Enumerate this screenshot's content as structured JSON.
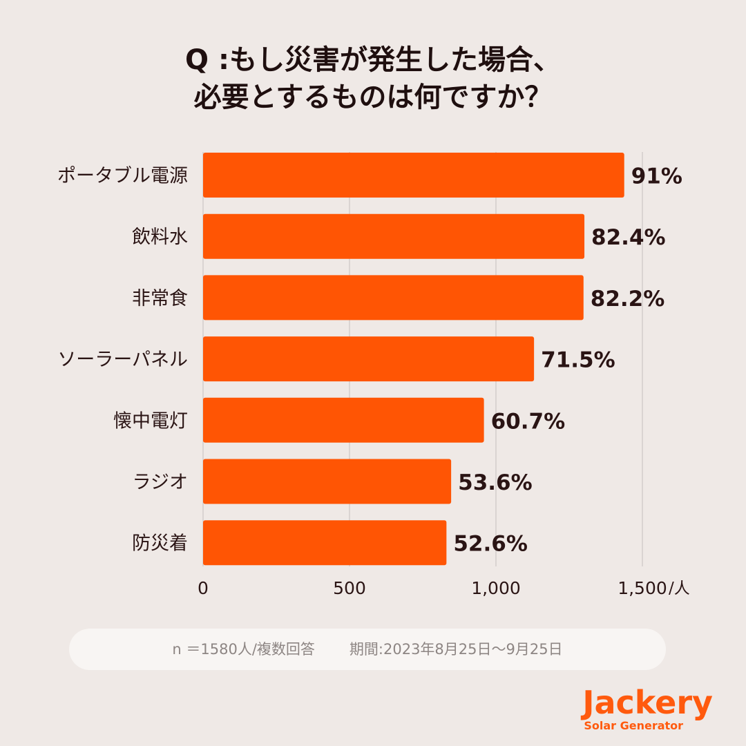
{
  "title_lines": [
    "Q :もし災害が発生した場合、",
    "必要とするものは何ですか？"
  ],
  "chart_data": {
    "type": "bar",
    "orientation": "horizontal",
    "title": "Q :もし災害が発生した場合、必要とするものは何ですか？",
    "categories": [
      "ポータブル電源",
      "飲料水",
      "非常食",
      "ソーラーパネル",
      "懐中電灯",
      "ラジオ",
      "防災着"
    ],
    "values": [
      1438,
      1302,
      1299,
      1130,
      959,
      847,
      831
    ],
    "value_labels": [
      "91%",
      "82.4%",
      "82.2%",
      "71.5%",
      "60.7%",
      "53.6%",
      "52.6%"
    ],
    "xlim": [
      0,
      1500
    ],
    "xticks": [
      0,
      500,
      1000,
      1500
    ],
    "xtick_labels": [
      "0",
      "500",
      "1,000",
      "1,500"
    ],
    "x_unit": "/人",
    "grid": true,
    "bar_color": "#ff5504",
    "grid_color": "#d3cdcb"
  },
  "footer": {
    "sample": "n ＝1580人/複数回答",
    "period": "期間:2023年8月25日〜9月25日"
  },
  "logo": {
    "name": "Jackery",
    "tagline": "Solar Generator",
    "color": "#ff5a0e"
  },
  "colors": {
    "background": "#efe9e6",
    "text": "#2a1414"
  }
}
